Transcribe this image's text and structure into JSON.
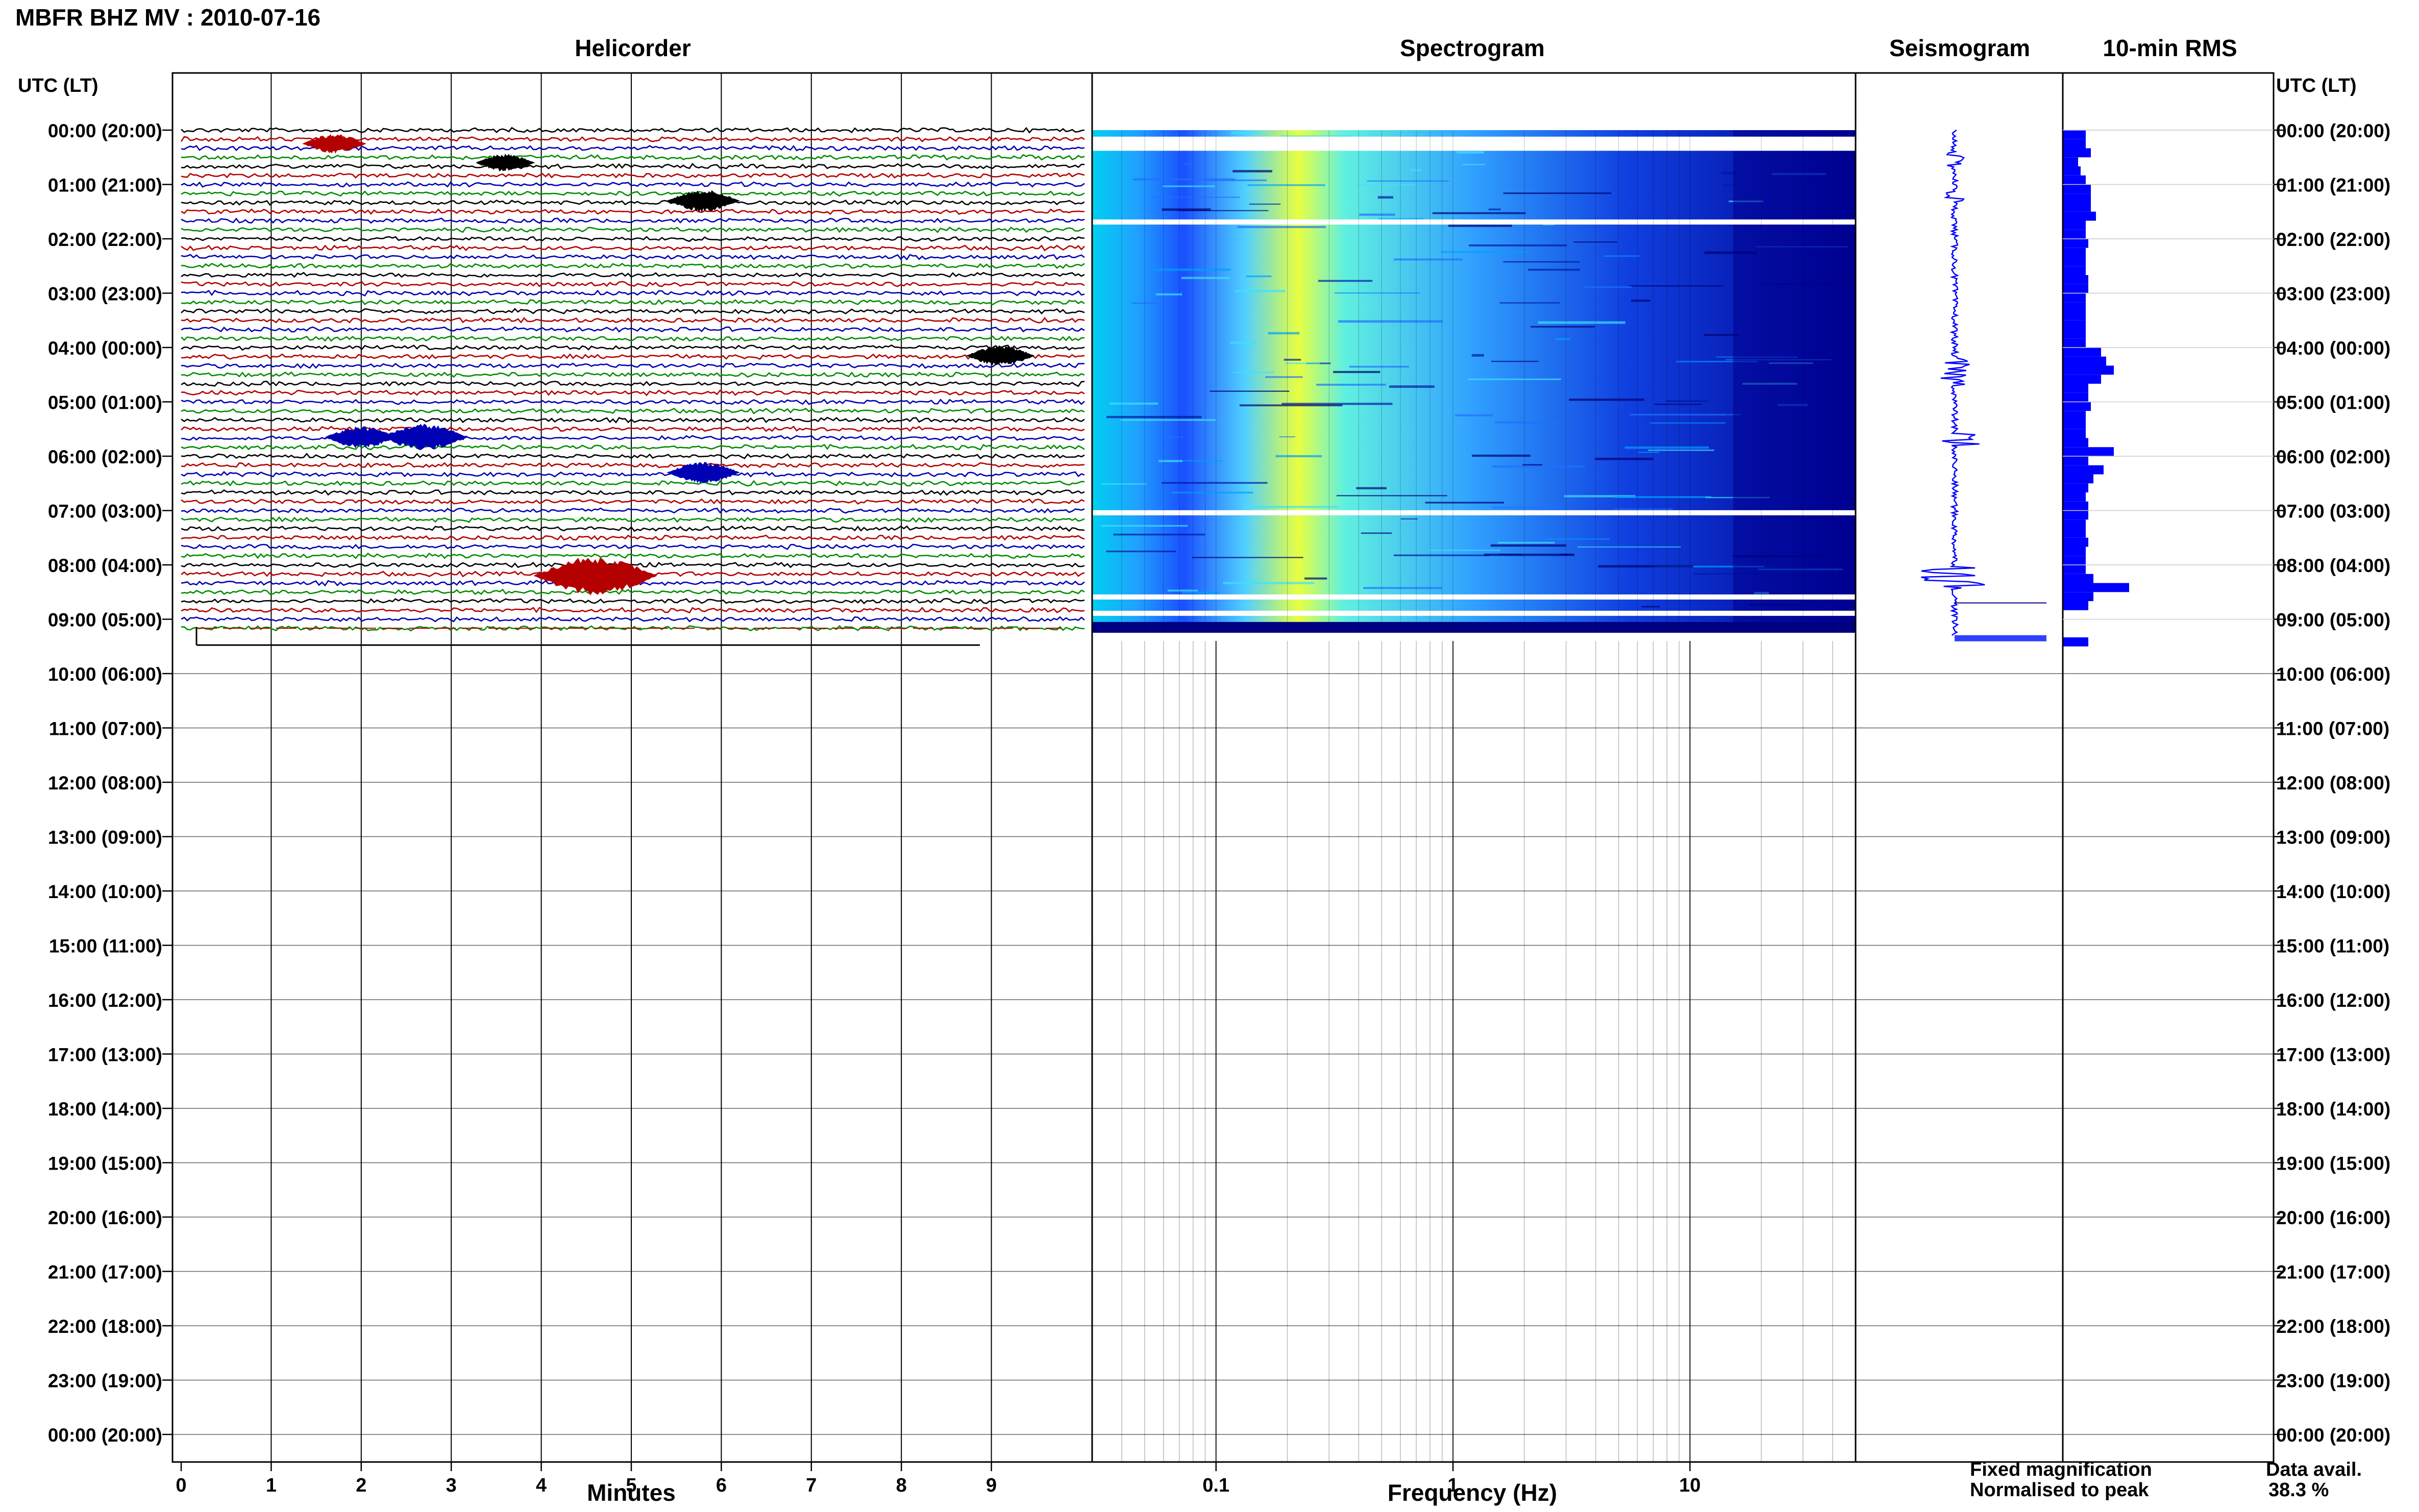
{
  "header": {
    "title": "MBFR BHZ MV : 2010-07-16",
    "axis_label_left": "UTC (LT)",
    "axis_label_right": "UTC (LT)"
  },
  "panels": {
    "helicorder": "Helicorder",
    "spectrogram": "Spectrogram",
    "seismogram": "Seismogram",
    "rms": "10-min RMS"
  },
  "x_labels": {
    "helicorder": "Minutes",
    "spectrogram": "Frequency (Hz)"
  },
  "legend": {
    "fixed": "Fixed magnification",
    "normalised": "Normalised to peak",
    "fixed_color": "#1a1aff",
    "normalised_color": "#ff1a1a"
  },
  "availability": {
    "label": "Data avail.",
    "value": "38.3 %"
  },
  "chart_data": [
    {
      "type": "line",
      "name": "helicorder",
      "x_ticks": [
        "0",
        "1",
        "2",
        "3",
        "4",
        "5",
        "6",
        "7",
        "8",
        "9"
      ],
      "xlabel": "Minutes",
      "y_ticks": [
        "00:00 (20:00)",
        "01:00 (21:00)",
        "02:00 (22:00)",
        "03:00 (23:00)",
        "04:00 (00:00)",
        "05:00 (01:00)",
        "06:00 (02:00)",
        "07:00 (03:00)",
        "08:00 (04:00)",
        "09:00 (05:00)",
        "10:00 (06:00)",
        "11:00 (07:00)",
        "12:00 (08:00)",
        "13:00 (09:00)",
        "14:00 (10:00)",
        "15:00 (11:00)",
        "16:00 (12:00)",
        "17:00 (13:00)",
        "18:00 (14:00)",
        "19:00 (15:00)",
        "20:00 (16:00)",
        "21:00 (17:00)",
        "22:00 (18:00)",
        "23:00 (19:00)",
        "00:00 (20:00)"
      ],
      "trace_colors": [
        "#000000",
        "#b40000",
        "#0000b4",
        "#008c00"
      ],
      "trace_interval_min": 10,
      "data_end_utc_hours": 9.4,
      "events": [
        {
          "utc_hours": 0.25,
          "minute": 1.7,
          "color": "#b40000",
          "strength": 0.35
        },
        {
          "utc_hours": 0.6,
          "minute": 3.6,
          "color": "#000000",
          "strength": 0.3
        },
        {
          "utc_hours": 1.3,
          "minute": 5.8,
          "color": "#000000",
          "strength": 0.45
        },
        {
          "utc_hours": 4.15,
          "minute": 9.1,
          "color": "#000000",
          "strength": 0.4
        },
        {
          "utc_hours": 5.65,
          "minute": 2.0,
          "color": "#0000b4",
          "strength": 0.45
        },
        {
          "utc_hours": 5.65,
          "minute": 2.7,
          "color": "#0000b4",
          "strength": 0.6
        },
        {
          "utc_hours": 6.3,
          "minute": 5.8,
          "color": "#0000b4",
          "strength": 0.45
        },
        {
          "utc_hours": 8.2,
          "minute": 4.6,
          "color": "#b40000",
          "strength": 1.0
        }
      ]
    },
    {
      "type": "heatmap",
      "name": "spectrogram",
      "xlabel": "Frequency (Hz)",
      "xscale": "log",
      "xlim": [
        0.03,
        50
      ],
      "x_ticks": [
        0.1,
        1,
        10
      ],
      "x_tick_labels": [
        "0.1",
        "1",
        "10"
      ],
      "data_end_utc_hours": 9.4,
      "gap_rows_utc_hours": [
        0.2,
        1.7,
        7.05,
        8.6,
        8.9
      ],
      "colormap": [
        "#000080",
        "#0000ff",
        "#0066ff",
        "#00ccff",
        "#33ffcc",
        "#ccff33",
        "#ffff00"
      ]
    },
    {
      "type": "line",
      "name": "seismogram",
      "data_end_utc_hours": 9.4,
      "color": "#0000ff"
    },
    {
      "type": "bar",
      "name": "rms",
      "orientation": "horizontal",
      "interval_min": 10,
      "color": "#0000ff",
      "values": [
        0.45,
        0.45,
        0.55,
        0.3,
        0.35,
        0.45,
        0.55,
        0.55,
        0.55,
        0.65,
        0.45,
        0.45,
        0.5,
        0.45,
        0.45,
        0.45,
        0.5,
        0.5,
        0.45,
        0.45,
        0.45,
        0.45,
        0.45,
        0.45,
        0.75,
        0.85,
        1.0,
        0.75,
        0.5,
        0.5,
        0.55,
        0.45,
        0.45,
        0.45,
        0.5,
        1.0,
        0.5,
        0.8,
        0.6,
        0.5,
        0.45,
        0.5,
        0.5,
        0.45,
        0.45,
        0.5,
        0.45,
        0.45,
        0.45,
        0.6,
        1.3,
        0.6,
        0.5,
        0,
        0,
        0,
        0.5
      ]
    }
  ]
}
